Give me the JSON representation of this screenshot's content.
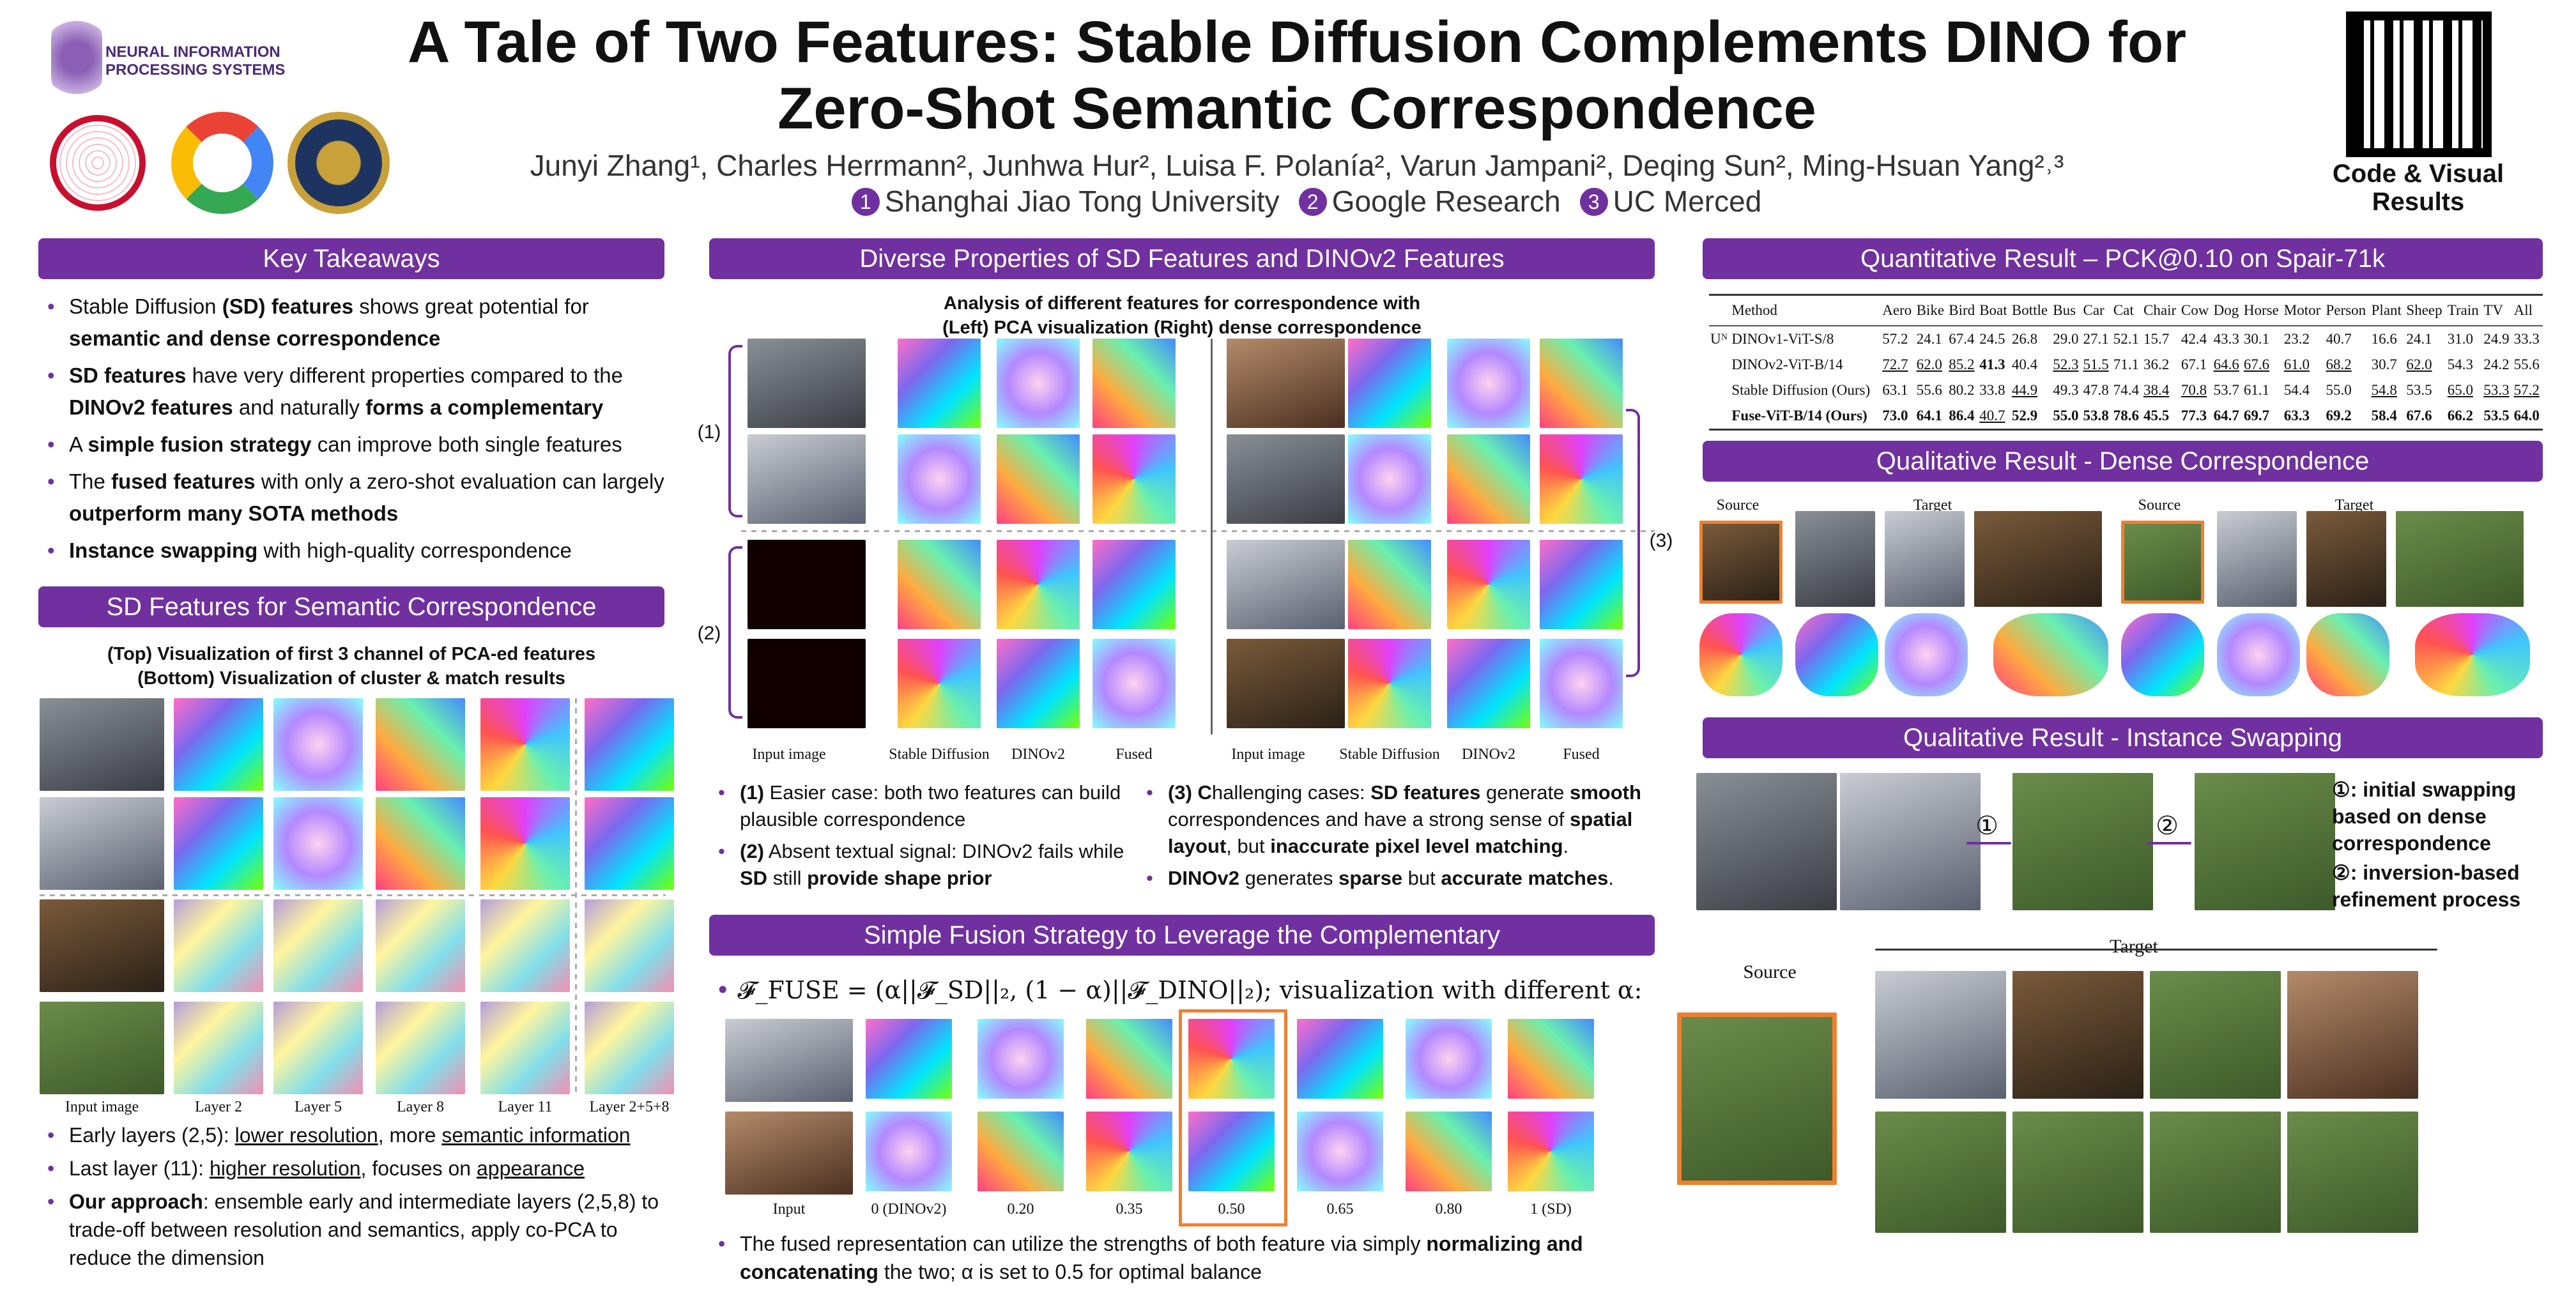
{
  "header": {
    "title_line1": "A Tale of Two Features: Stable Diffusion Complements DINO for",
    "title_line2": "Zero-Shot Semantic Correspondence",
    "authors": "Junyi Zhang¹, Charles Herrmann², Junhwa Hur², Luisa F. Polanía², Varun Jampani², Deqing Sun², Ming-Hsuan Yang²˒³",
    "affiliations": [
      {
        "n": "1",
        "name": "Shanghai Jiao Tong University"
      },
      {
        "n": "2",
        "name": "Google Research"
      },
      {
        "n": "3",
        "name": "UC Merced"
      }
    ],
    "neurips_logo": "NEURAL INFORMATION PROCESSING SYSTEMS",
    "qr_caption": "Code & Visual Results",
    "accent": "#7030a0"
  },
  "key_takeaways": {
    "title": "Key Takeaways",
    "bullets": [
      [
        {
          "t": "Stable Diffusion "
        },
        {
          "t": "(SD) features",
          "b": 1
        },
        {
          "t": " shows great potential for "
        },
        {
          "t": "semantic and dense correspondence",
          "b": 1
        }
      ],
      [
        {
          "t": "SD features",
          "b": 1
        },
        {
          "t": " have very different properties compared to the "
        },
        {
          "t": "DINOv2 features",
          "b": 1
        },
        {
          "t": " and naturally "
        },
        {
          "t": "forms a complementary",
          "b": 1
        }
      ],
      [
        {
          "t": "A "
        },
        {
          "t": "simple fusion strategy",
          "b": 1
        },
        {
          "t": " can improve both single features"
        }
      ],
      [
        {
          "t": "The "
        },
        {
          "t": "fused features",
          "b": 1
        },
        {
          "t": " with only a zero-shot evaluation can largely "
        },
        {
          "t": "outperform many SOTA methods",
          "b": 1
        }
      ],
      [
        {
          "t": "Instance swapping",
          "b": 1
        },
        {
          "t": " with high-quality correspondence"
        }
      ]
    ]
  },
  "sd_features": {
    "title": "SD Features for Semantic Correspondence",
    "caption1": "(Top) Visualization of first 3 channel of PCA-ed features",
    "caption2": "(Bottom) Visualization of cluster & match results",
    "column_labels": [
      "Input image",
      "Layer 2",
      "Layer 5",
      "Layer 8",
      "Layer 11",
      "Layer 2+5+8"
    ],
    "bullets": [
      [
        {
          "t": "Early layers (2,5): "
        },
        {
          "t": "lower resolution",
          "u": 1
        },
        {
          "t": ", more "
        },
        {
          "t": "semantic information",
          "u": 1
        }
      ],
      [
        {
          "t": "Last layer (11): "
        },
        {
          "t": "higher resolution",
          "u": 1
        },
        {
          "t": ", focuses on "
        },
        {
          "t": "appearance",
          "u": 1
        }
      ],
      [
        {
          "t": "Our approach",
          "b": 1
        },
        {
          "t": ": ensemble early and intermediate layers (2,5,8) to trade-off between resolution and semantics, apply co-PCA to reduce the dimension"
        }
      ]
    ]
  },
  "diverse": {
    "title": "Diverse Properties of SD Features and DINOv2 Features",
    "caption1": "Analysis of different features for correspondence with",
    "caption2": "(Left) PCA visualization (Right) dense correspondence",
    "group_labels": [
      "(1)",
      "(2)",
      "(3)"
    ],
    "column_labels": [
      "Input image",
      "Stable Diffusion",
      "DINOv2",
      "Fused",
      "Input image",
      "Stable Diffusion",
      "DINOv2",
      "Fused"
    ],
    "bullets_left": [
      [
        {
          "t": "(1)",
          "b": 1
        },
        {
          "t": " Easier case: both two features can build plausible correspondence"
        }
      ],
      [
        {
          "t": "(2)",
          "b": 1
        },
        {
          "t": " Absent textual signal: DINOv2 fails while "
        },
        {
          "t": "SD",
          "b": 1
        },
        {
          "t": " still "
        },
        {
          "t": "provide shape prior",
          "b": 1
        }
      ]
    ],
    "bullets_right": [
      [
        {
          "t": "(3) C",
          "b": 1
        },
        {
          "t": "hallenging cases: "
        },
        {
          "t": "SD features",
          "b": 1
        },
        {
          "t": " generate "
        },
        {
          "t": "smooth",
          "b": 1
        },
        {
          "t": " correspondences and have a strong sense of "
        },
        {
          "t": "spatial layout",
          "b": 1
        },
        {
          "t": ", but "
        },
        {
          "t": "inaccurate pixel level matching",
          "b": 1
        },
        {
          "t": "."
        }
      ],
      [
        {
          "t": "DINOv2",
          "b": 1
        },
        {
          "t": " generates "
        },
        {
          "t": "sparse",
          "b": 1
        },
        {
          "t": " but "
        },
        {
          "t": "accurate matches",
          "b": 1
        },
        {
          "t": "."
        }
      ]
    ]
  },
  "fusion": {
    "title": "Simple Fusion Strategy to Leverage the Complementary",
    "formula": "𝓕_FUSE = (α||𝓕_SD||₂, (1 − α)||𝓕_DINO||₂); visualization with different α:",
    "alpha_labels": [
      "Input",
      "0 (DINOv2)",
      "0.20",
      "0.35",
      "0.50",
      "0.65",
      "0.80",
      "1 (SD)"
    ],
    "selected_alpha": "0.50",
    "bullet": [
      {
        "t": "The fused representation can utilize the strengths of both feature via simply "
      },
      {
        "t": "normalizing and concatenating",
        "b": 1
      },
      {
        "t": " the two; α is set to 0.5 for optimal balance"
      }
    ]
  },
  "quantitative": {
    "title": "Quantitative Result – PCK@0.10 on Spair-71k",
    "columns": [
      "Method",
      "Aero",
      "Bike",
      "Bird",
      "Boat",
      "Bottle",
      "Bus",
      "Car",
      "Cat",
      "Chair",
      "Cow",
      "Dog",
      "Horse",
      "Motor",
      "Person",
      "Plant",
      "Sheep",
      "Train",
      "TV",
      "All"
    ],
    "group_label": "Uᴺ",
    "rows": [
      {
        "method": "DINOv1-ViT-S/8",
        "values": [
          "57.2",
          "24.1",
          "67.4",
          "24.5",
          "26.8",
          "29.0",
          "27.1",
          "52.1",
          "15.7",
          "42.4",
          "43.3",
          "30.1",
          "23.2",
          "40.7",
          "16.6",
          "24.1",
          "31.0",
          "24.9",
          "33.3"
        ],
        "bold": [],
        "underline": []
      },
      {
        "method": "DINOv2-ViT-B/14",
        "values": [
          "72.7",
          "62.0",
          "85.2",
          "41.3",
          "40.4",
          "52.3",
          "51.5",
          "71.1",
          "36.2",
          "67.1",
          "64.6",
          "67.6",
          "61.0",
          "68.2",
          "30.7",
          "62.0",
          "54.3",
          "24.2",
          "55.6"
        ],
        "bold": [
          3
        ],
        "underline": [
          0,
          1,
          2,
          5,
          6,
          10,
          11,
          12,
          13,
          15
        ]
      },
      {
        "method": "Stable Diffusion (Ours)",
        "values": [
          "63.1",
          "55.6",
          "80.2",
          "33.8",
          "44.9",
          "49.3",
          "47.8",
          "74.4",
          "38.4",
          "70.8",
          "53.7",
          "61.1",
          "54.4",
          "55.0",
          "54.8",
          "53.5",
          "65.0",
          "53.3",
          "57.2"
        ],
        "bold": [],
        "underline": [
          4,
          8,
          9,
          14,
          16,
          17,
          18
        ]
      },
      {
        "method": "Fuse-ViT-B/14 (Ours)",
        "values": [
          "73.0",
          "64.1",
          "86.4",
          "40.7",
          "52.9",
          "55.0",
          "53.8",
          "78.6",
          "45.5",
          "77.3",
          "64.7",
          "69.7",
          "63.3",
          "69.2",
          "58.4",
          "67.6",
          "66.2",
          "53.5",
          "64.0"
        ],
        "bold": [
          0,
          1,
          2,
          4,
          5,
          6,
          7,
          8,
          9,
          10,
          11,
          12,
          13,
          14,
          15,
          16,
          17,
          18
        ],
        "underline": [
          3
        ]
      }
    ]
  },
  "dense": {
    "title": "Qualitative Result - Dense Correspondence",
    "source_label": "Source",
    "target_label": "Target"
  },
  "swapping": {
    "title": "Qualitative Result - Instance Swapping",
    "step1": "①",
    "step2": "②",
    "note1": "①: initial swapping based on dense correspondence",
    "note2": "②: inversion-based refinement process",
    "source_label": "Source",
    "target_label": "Target"
  }
}
